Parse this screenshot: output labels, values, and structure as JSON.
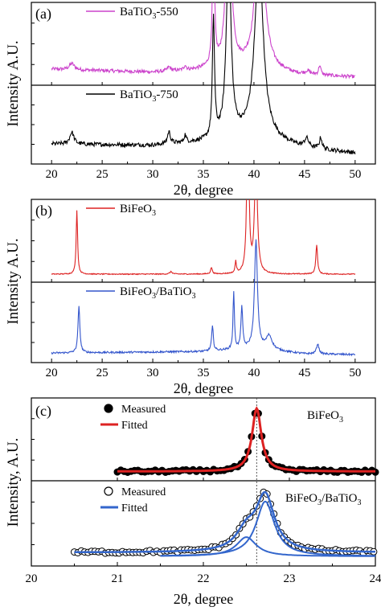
{
  "figure": {
    "shared_ylabel": "Intensity A.U.",
    "c_ylabel": "Intensity, A.U."
  },
  "chart_data": [
    {
      "panel": "(a)",
      "type": "line",
      "xlabel": "2θ, degree",
      "ylabel": "Intensity A.U.",
      "xlim": [
        18,
        52
      ],
      "xticks": [
        20,
        25,
        30,
        35,
        40,
        45,
        50
      ],
      "colors": {
        "top": "#cc44cc",
        "bottom": "#000000"
      },
      "series": [
        {
          "name": "BaTiO3-550",
          "label": {
            "main": "BaTiO",
            "sub": "3",
            "tail": "-550"
          },
          "color": "#cc44cc",
          "baseline": 0.1,
          "noise": 0.022,
          "bg": [
            [
              20,
              0.12
            ],
            [
              30,
              0.08
            ],
            [
              34,
              0.1
            ],
            [
              40,
              0.14
            ],
            [
              44,
              0.05
            ],
            [
              50,
              0.02
            ]
          ],
          "peaks": [
            [
              22.0,
              0.08,
              0.6
            ],
            [
              31.6,
              0.05,
              0.4
            ],
            [
              33.2,
              0.06,
              0.25
            ],
            [
              36.0,
              1.6,
              0.25
            ],
            [
              37.5,
              2.5,
              0.55
            ],
            [
              40.6,
              2.2,
              0.9
            ],
            [
              45.3,
              0.04,
              0.5
            ],
            [
              46.5,
              0.12,
              0.25
            ]
          ]
        },
        {
          "name": "BaTiO3-750",
          "label": {
            "main": "BaTiO",
            "sub": "3",
            "tail": "-750"
          },
          "color": "#000000",
          "baseline": 0.18,
          "noise": 0.028,
          "bg": [
            [
              20,
              0.18
            ],
            [
              30,
              0.16
            ],
            [
              35,
              0.2
            ],
            [
              40,
              0.28
            ],
            [
              45,
              0.12
            ],
            [
              50,
              0.06
            ]
          ],
          "peaks": [
            [
              22.0,
              0.16,
              0.5
            ],
            [
              31.6,
              0.16,
              0.35
            ],
            [
              33.2,
              0.1,
              0.25
            ],
            [
              36.0,
              1.6,
              0.25
            ],
            [
              37.5,
              2.5,
              0.55
            ],
            [
              40.5,
              2.4,
              1.0
            ],
            [
              45.2,
              0.12,
              0.5
            ],
            [
              46.6,
              0.15,
              0.3
            ]
          ]
        }
      ]
    },
    {
      "panel": "(b)",
      "type": "line",
      "xlabel": "2θ, degree",
      "ylabel": "Intensity A.U.",
      "xlim": [
        18,
        52
      ],
      "xticks": [
        20,
        25,
        30,
        35,
        40,
        45,
        50
      ],
      "series": [
        {
          "name": "BiFeO3",
          "label": {
            "main": "BiFeO",
            "sub": "3",
            "tail": ""
          },
          "color": "#dd2222",
          "baseline": 0.03,
          "noise": 0.006,
          "bg": [
            [
              20,
              0.02
            ],
            [
              50,
              0.02
            ]
          ],
          "peaks": [
            [
              22.5,
              0.8,
              0.17
            ],
            [
              31.8,
              0.03,
              0.3
            ],
            [
              35.8,
              0.08,
              0.2
            ],
            [
              38.2,
              0.15,
              0.15
            ],
            [
              39.4,
              2.4,
              0.22
            ],
            [
              40.2,
              1.6,
              0.3
            ],
            [
              46.2,
              0.37,
              0.2
            ]
          ]
        },
        {
          "name": "BiFeO3/BaTiO3",
          "label": {
            "main": "BiFeO",
            "sub": "3",
            "tail": "/BaTiO",
            "sub2": "3"
          },
          "color": "#3355cc",
          "baseline": 0.07,
          "noise": 0.012,
          "bg": [
            [
              20,
              0.04
            ],
            [
              35,
              0.06
            ],
            [
              40,
              0.1
            ],
            [
              45,
              0.03
            ],
            [
              50,
              0.02
            ]
          ],
          "peaks": [
            [
              22.7,
              0.6,
              0.22
            ],
            [
              35.9,
              0.32,
              0.2
            ],
            [
              38.0,
              0.75,
              0.16
            ],
            [
              38.8,
              0.55,
              0.2
            ],
            [
              40.2,
              1.4,
              0.35
            ],
            [
              41.5,
              0.18,
              0.7
            ],
            [
              46.3,
              0.13,
              0.3
            ]
          ]
        }
      ]
    },
    {
      "panel": "(c)",
      "type": "scatter",
      "xlabel": "2θ, degree",
      "ylabel": "Intensity, A.U.",
      "xlim": [
        20,
        24
      ],
      "xticks": [
        20,
        21,
        22,
        23,
        24
      ],
      "reference_line_x": 22.62,
      "panels": [
        {
          "sample": {
            "main": "BiFeO",
            "sub": "3",
            "tail": ""
          },
          "measured": {
            "label": "Measured",
            "marker": "filled-circle",
            "color": "#000000"
          },
          "fitted": {
            "label": "Fitted",
            "color": "#dd2222"
          },
          "x_range": [
            21.0,
            24.0
          ],
          "components": [
            [
              22.62,
              1.0,
              0.13
            ]
          ],
          "baseline": 0.02
        },
        {
          "sample": {
            "main": "BiFeO",
            "sub": "3",
            "tail": "/BaTiO",
            "sub2": "3"
          },
          "measured": {
            "label": "Measured",
            "marker": "open-circle",
            "color": "#000000"
          },
          "fitted": {
            "label": "Fitted",
            "color": "#3366cc"
          },
          "x_range": [
            20.5,
            24.0
          ],
          "components": [
            [
              22.5,
              0.28,
              0.28
            ],
            [
              22.72,
              0.8,
              0.26
            ]
          ],
          "baseline": 0.08
        }
      ]
    }
  ]
}
